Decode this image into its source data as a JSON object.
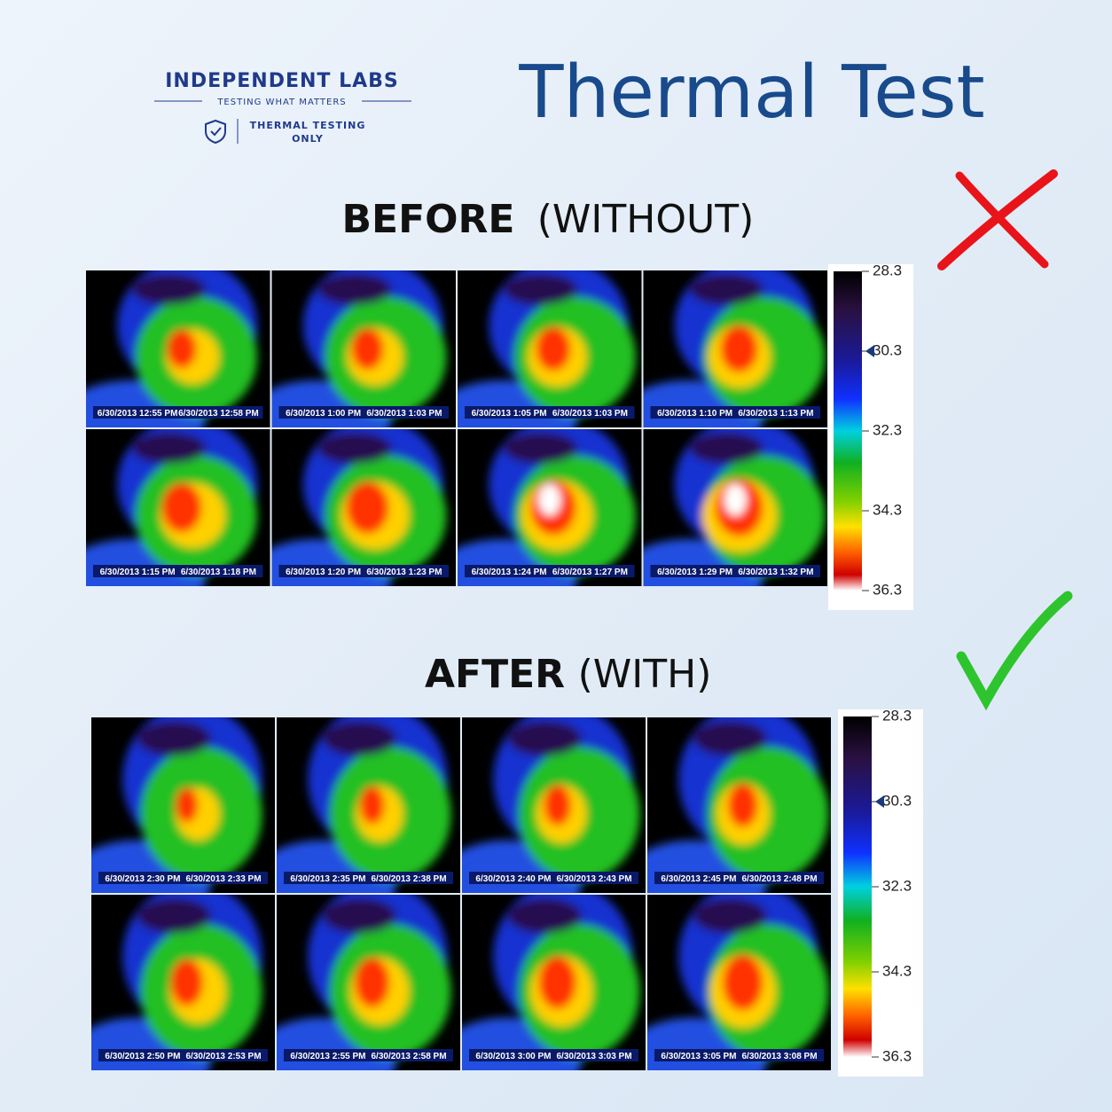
{
  "logo": {
    "name": "INDEPENDENT LABS",
    "tagline": "TESTING WHAT MATTERS",
    "badge": [
      "THERMAL TESTING",
      "ONLY"
    ]
  },
  "title": "Thermal Test",
  "before": {
    "label": "BEFORE",
    "note": "(WITHOUT)",
    "panels": [
      [
        "6/30/2013 12:55 PM",
        "6/30/2013 12:58 PM"
      ],
      [
        "6/30/2013 1:00 PM",
        "6/30/2013 1:03 PM"
      ],
      [
        "6/30/2013 1:05 PM",
        "6/30/2013 1:03 PM"
      ],
      [
        "6/30/2013 1:10 PM",
        "6/30/2013 1:13 PM"
      ],
      [
        "6/30/2013 1:15 PM",
        "6/30/2013 1:18 PM"
      ],
      [
        "6/30/2013 1:20 PM",
        "6/30/2013 1:23 PM"
      ],
      [
        "6/30/2013 1:24 PM",
        "6/30/2013 1:27 PM"
      ],
      [
        "6/30/2013 1:29 PM",
        "6/30/2013 1:32 PM"
      ]
    ],
    "scale": [
      28.3,
      30.3,
      32.3,
      34.3,
      36.3
    ]
  },
  "after": {
    "label": "AFTER",
    "note": "(WITH)",
    "panels": [
      [
        "6/30/2013 2:30 PM",
        "6/30/2013 2:33 PM"
      ],
      [
        "6/30/2013 2:35 PM",
        "6/30/2013 2:38 PM"
      ],
      [
        "6/30/2013 2:40 PM",
        "6/30/2013 2:43 PM"
      ],
      [
        "6/30/2013 2:45 PM",
        "6/30/2013 2:48 PM"
      ],
      [
        "6/30/2013 2:50 PM",
        "6/30/2013 2:53 PM"
      ],
      [
        "6/30/2013 2:55 PM",
        "6/30/2013 2:58 PM"
      ],
      [
        "6/30/2013 3:00 PM",
        "6/30/2013 3:03 PM"
      ],
      [
        "6/30/2013 3:05 PM",
        "6/30/2013 3:08 PM"
      ]
    ],
    "scale": [
      28.3,
      30.3,
      32.3,
      34.3,
      36.3
    ]
  }
}
